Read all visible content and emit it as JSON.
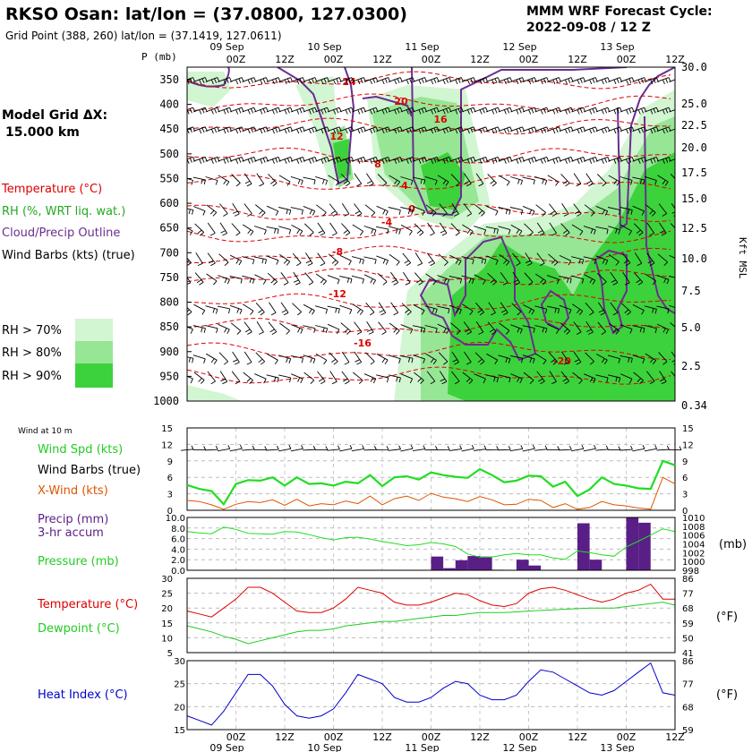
{
  "header": {
    "title": "RKSO Osan:  lat/lon = (37.0800, 127.0300)",
    "subtitle": "Grid Point (388, 260) lat/lon = (37.1419, 127.0611)",
    "cycle_line1": "MMM WRF Forecast Cycle:",
    "cycle_line2": "2022-09-08 / 12  Z"
  },
  "left_panel": {
    "model_grid": "Model Grid ΔX:",
    "grid_km": "15.000 km",
    "legend_temperature": "Temperature (°C)",
    "legend_rh": "RH (%, WRT liq. wat.)",
    "legend_cloud": "Cloud/Precip Outline",
    "legend_barbs": "Wind Barbs (kts) (true)",
    "rh_levels": [
      "RH > 70%",
      "RH > 80%",
      "RH > 90%"
    ],
    "wind_at": "Wind at 10 m",
    "legend_wspd": "Wind Spd (kts)",
    "legend_wbarbs": "Wind Barbs (true)",
    "legend_xwind": "X-Wind (kts)",
    "legend_precip1": "Precip (mm)",
    "legend_precip2": "3-hr accum",
    "legend_pressure": "Pressure (mb)",
    "legend_temp2": "Temperature (°C)",
    "legend_dewpoint": "Dewpoint (°C)",
    "legend_heat": "Heat Index (°C)"
  },
  "colors": {
    "rh70": "#d2f5d2",
    "rh80": "#96e696",
    "rh90": "#3cd23c",
    "temperature": "#dd0000",
    "cloud": "#6a2d91",
    "wind": "#22dd22",
    "xwind": "#dd5500",
    "dewpoint": "#22cc22",
    "heat": "#0000cc",
    "precip": "#5a1e87"
  },
  "chart_data": [
    {
      "type": "area",
      "name": "cross-section",
      "p_axis_label": "P (mb)",
      "right_axis_label": "Kft MSL",
      "pressure_ticks": [
        350,
        400,
        450,
        500,
        550,
        600,
        650,
        700,
        750,
        800,
        850,
        900,
        950,
        1000
      ],
      "height_ticks": [
        "30.0",
        "25.0",
        "22.5",
        "20.0",
        "17.5",
        "15.0",
        "12.5",
        "10.0",
        "7.5",
        "5.0",
        "2.5",
        "0.34"
      ],
      "time_hours": [
        0,
        3,
        6,
        9,
        12,
        15,
        18,
        21,
        24,
        27,
        30,
        33,
        36,
        39,
        42,
        45,
        48,
        51,
        54,
        57,
        60,
        63,
        66,
        69,
        72,
        75,
        78,
        81,
        84,
        87,
        90,
        93,
        96,
        99,
        102,
        105,
        108,
        111,
        114,
        117,
        120
      ],
      "time_labels_top": [
        "00Z",
        "12Z",
        "00Z",
        "12Z",
        "00Z",
        "12Z",
        "00Z",
        "12Z",
        "00Z",
        "12Z"
      ],
      "date_labels": [
        "09 Sep",
        "10 Sep",
        "11 Sep",
        "12 Sep",
        "13 Sep"
      ],
      "temperature_labels": [
        "24",
        "20",
        "16",
        "12",
        "8",
        "4",
        "0",
        "-4",
        "-8",
        "-12",
        "-16",
        "-20"
      ]
    },
    {
      "type": "line",
      "name": "wind",
      "yticks": [
        "15",
        "12",
        "9",
        "6",
        "3",
        "0"
      ],
      "wind_speed": [
        4.6,
        3.9,
        3.5,
        1.1,
        4.8,
        5.5,
        5.4,
        6.0,
        4.5,
        6.0,
        4.8,
        4.9,
        4.5,
        5.2,
        4.9,
        6.4,
        4.4,
        6.0,
        6.2,
        5.6,
        6.9,
        6.4,
        6.1,
        5.9,
        7.5,
        6.4,
        5.1,
        5.4,
        6.3,
        6.2,
        4.3,
        5.2,
        2.6,
        3.8,
        6.0,
        4.8,
        4.5,
        4.0,
        3.9,
        9.0,
        8.2
      ],
      "cross_wind": [
        1.8,
        1.6,
        1.0,
        0.2,
        1.1,
        1.6,
        1.4,
        1.9,
        0.9,
        2.0,
        0.8,
        1.2,
        1.0,
        1.7,
        1.2,
        2.6,
        1.0,
        2.1,
        2.6,
        1.8,
        3.1,
        2.4,
        2.1,
        1.6,
        2.5,
        1.9,
        1.0,
        1.1,
        2.0,
        1.8,
        0.5,
        1.2,
        0.2,
        0.5,
        1.6,
        1.0,
        0.8,
        0.4,
        0.2,
        6.0,
        4.8
      ]
    },
    {
      "type": "bar",
      "name": "precip-pressure",
      "precip_ticks": [
        "10.0",
        "8.0",
        "6.0",
        "4.0",
        "2.0",
        "0.0"
      ],
      "pressure_ticks": [
        "1010",
        "1008",
        "1006",
        "1004",
        "1002",
        "1000",
        "998"
      ],
      "precip": [
        0,
        0,
        0,
        0,
        0,
        0,
        0,
        0,
        0,
        0,
        0,
        0,
        0,
        0,
        0,
        0,
        0,
        0,
        0,
        0,
        0,
        2.6,
        0.4,
        1.9,
        2.7,
        2.6,
        0.1,
        0,
        2.0,
        0.9,
        0,
        0,
        0,
        8.9,
        2.0,
        0,
        0,
        10.0,
        9.0,
        0,
        0
      ],
      "pressure": [
        1006.8,
        1006.5,
        1006.3,
        1007.8,
        1007.3,
        1006.4,
        1006.3,
        1006.2,
        1006.8,
        1006.7,
        1006.1,
        1005.4,
        1004.9,
        1005.4,
        1005.5,
        1005.1,
        1004.5,
        1004.1,
        1003.6,
        1003.8,
        1004.3,
        1004.0,
        1003.4,
        1001.7,
        1001.0,
        1001.0,
        1001.5,
        1001.8,
        1001.5,
        1001.5,
        1000.8,
        1000.5,
        1002.4,
        1002.0,
        1001.5,
        1001.2,
        1003.3,
        1004.6,
        1006.0,
        1007.4,
        1006.8
      ]
    },
    {
      "type": "line",
      "name": "temperature-dewpoint",
      "yticks_c": [
        "30",
        "25",
        "20",
        "15",
        "10",
        "5"
      ],
      "yticks_f": [
        "86",
        "77",
        "68",
        "59",
        "50",
        "41"
      ],
      "unit_f": "(°F)",
      "temperature": [
        19,
        18,
        17,
        20,
        23,
        27,
        27,
        25,
        22,
        19,
        18.5,
        18.5,
        20,
        23,
        27,
        26,
        25,
        22,
        21,
        21,
        22,
        23.5,
        25,
        24.5,
        22.5,
        21,
        20.5,
        21.5,
        25,
        26.5,
        27,
        26,
        24.5,
        23,
        22,
        23,
        25,
        26,
        28,
        23,
        23
      ],
      "dewpoint": [
        14,
        13,
        12,
        10.5,
        9.5,
        8,
        9,
        10,
        11,
        12,
        12.5,
        12.5,
        13,
        14,
        14.5,
        15,
        15.5,
        15.5,
        16,
        16.5,
        17,
        17.5,
        17.5,
        18,
        18.5,
        18.5,
        18.5,
        18.7,
        19,
        19.2,
        19.4,
        19.6,
        19.8,
        20,
        20,
        20,
        20.5,
        21,
        21.5,
        22,
        21
      ]
    },
    {
      "type": "line",
      "name": "heat-index",
      "yticks_c": [
        "30",
        "25",
        "20",
        "15"
      ],
      "yticks_f": [
        "86",
        "77",
        "68",
        "59"
      ],
      "unit_f": "(°F)",
      "bottom_time_labels": [
        "00Z",
        "12Z",
        "00Z",
        "12Z",
        "00Z",
        "12Z",
        "00Z",
        "12Z",
        "00Z",
        "12Z"
      ],
      "heat_index": [
        18,
        17,
        16,
        19,
        23,
        27,
        27,
        24.5,
        20.5,
        18,
        17.5,
        18,
        19.5,
        23,
        27,
        26,
        25,
        22,
        21,
        21,
        22,
        24,
        25.5,
        25,
        22.5,
        21.5,
        21.5,
        22.5,
        25.5,
        28,
        27.5,
        26,
        24.5,
        23,
        22.5,
        23.5,
        25.5,
        27.5,
        29.5,
        23,
        22.5
      ]
    }
  ]
}
